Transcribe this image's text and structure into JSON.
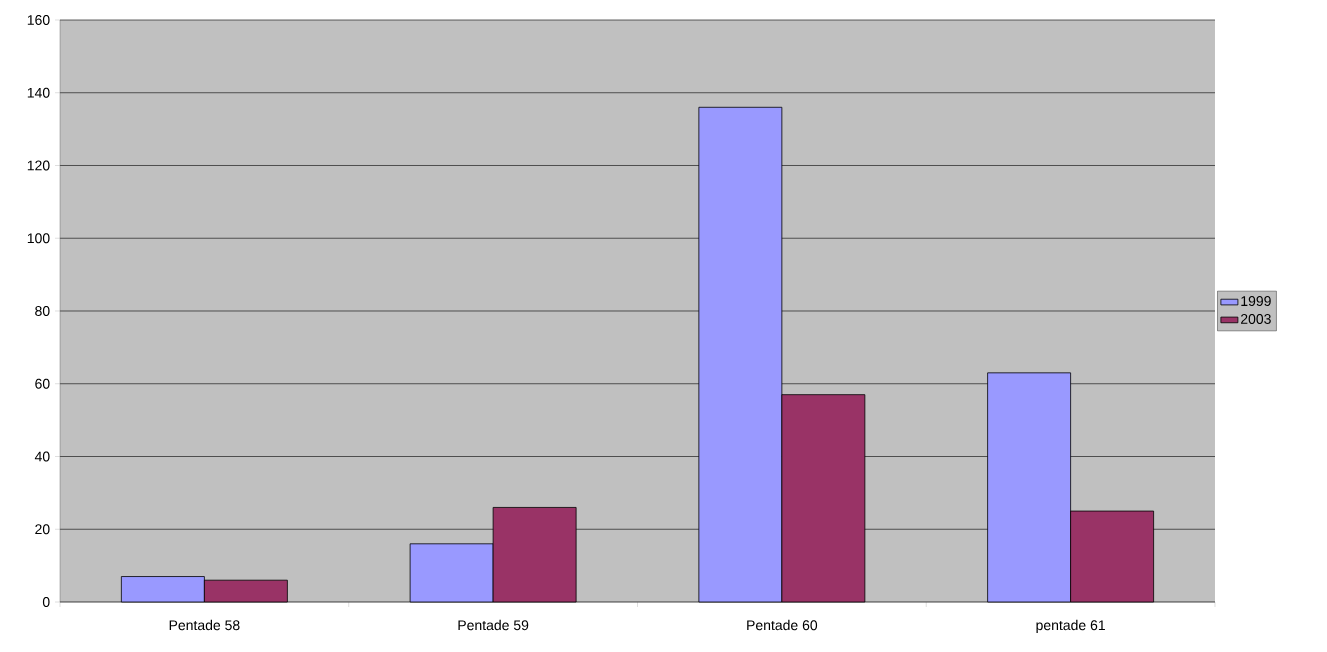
{
  "chart_data": {
    "type": "bar",
    "categories": [
      "Pentade 58",
      "Pentade 59",
      "Pentade 60",
      "pentade 61"
    ],
    "series": [
      {
        "name": "1999",
        "color": "#9999ff",
        "values": [
          7,
          16,
          136,
          63
        ]
      },
      {
        "name": "2003",
        "color": "#993366",
        "values": [
          6,
          26,
          57,
          25
        ]
      }
    ],
    "ylim": [
      0,
      160
    ],
    "yticks": [
      0,
      20,
      40,
      60,
      80,
      100,
      120,
      140,
      160
    ],
    "grid": "y",
    "legend": "right"
  }
}
